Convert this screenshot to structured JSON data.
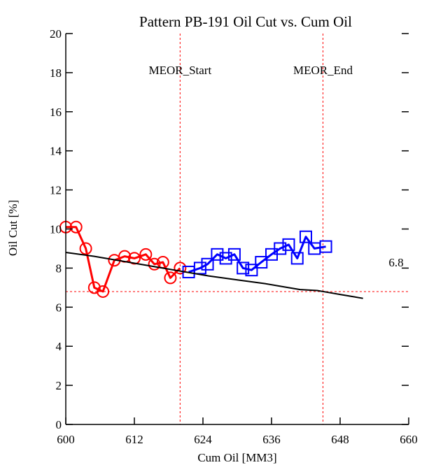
{
  "chart_data": {
    "type": "line",
    "title": "Pattern PB-191    Oil Cut vs. Cum Oil",
    "xlabel": "Cum Oil [MM3]",
    "ylabel": "Oil Cut [%]",
    "xlim": [
      600,
      660
    ],
    "ylim": [
      0,
      20
    ],
    "x_ticks": [
      600,
      612,
      624,
      636,
      648,
      660
    ],
    "y_ticks": [
      0,
      2,
      4,
      6,
      8,
      10,
      12,
      14,
      16,
      18,
      20
    ],
    "grid": false,
    "series": [
      {
        "color": "#ff0000",
        "marker": "circle",
        "points": [
          [
            600.0,
            10.1
          ],
          [
            601.8,
            10.1
          ],
          [
            603.5,
            9.0
          ],
          [
            605.0,
            7.0
          ],
          [
            606.5,
            6.8
          ],
          [
            608.5,
            8.4
          ],
          [
            610.3,
            8.6
          ],
          [
            612.0,
            8.5
          ],
          [
            614.0,
            8.7
          ],
          [
            615.5,
            8.2
          ],
          [
            617.0,
            8.3
          ],
          [
            618.3,
            7.5
          ],
          [
            620.0,
            8.0
          ]
        ]
      },
      {
        "color": "#0000ff",
        "marker": "square",
        "points": [
          [
            621.5,
            7.8
          ],
          [
            623.5,
            8.0
          ],
          [
            624.8,
            8.2
          ],
          [
            626.5,
            8.7
          ],
          [
            628.0,
            8.5
          ],
          [
            629.5,
            8.7
          ],
          [
            631.0,
            8.0
          ],
          [
            632.5,
            7.9
          ],
          [
            634.2,
            8.3
          ],
          [
            636.0,
            8.7
          ],
          [
            637.5,
            9.0
          ],
          [
            639.0,
            9.2
          ],
          [
            640.5,
            8.5
          ],
          [
            642.0,
            9.6
          ],
          [
            643.5,
            9.0
          ],
          [
            645.5,
            9.1
          ]
        ]
      },
      {
        "color": "#000000",
        "marker": "none",
        "points": [
          [
            600,
            8.8
          ],
          [
            605,
            8.6
          ],
          [
            610,
            8.35
          ],
          [
            615,
            8.1
          ],
          [
            620,
            7.85
          ],
          [
            625,
            7.6
          ],
          [
            630,
            7.4
          ],
          [
            635,
            7.2
          ],
          [
            638,
            7.05
          ],
          [
            641,
            6.9
          ],
          [
            644,
            6.85
          ],
          [
            646,
            6.75
          ],
          [
            648,
            6.65
          ],
          [
            650,
            6.55
          ],
          [
            652,
            6.45
          ]
        ]
      }
    ],
    "reference_lines": {
      "horizontal": {
        "y": 6.8,
        "label": "6.8",
        "color": "#ff0000"
      },
      "vertical": [
        {
          "x": 620,
          "label": "MEOR_Start",
          "color": "#ff0000"
        },
        {
          "x": 645,
          "label": "MEOR_End",
          "color": "#ff0000"
        }
      ]
    }
  }
}
